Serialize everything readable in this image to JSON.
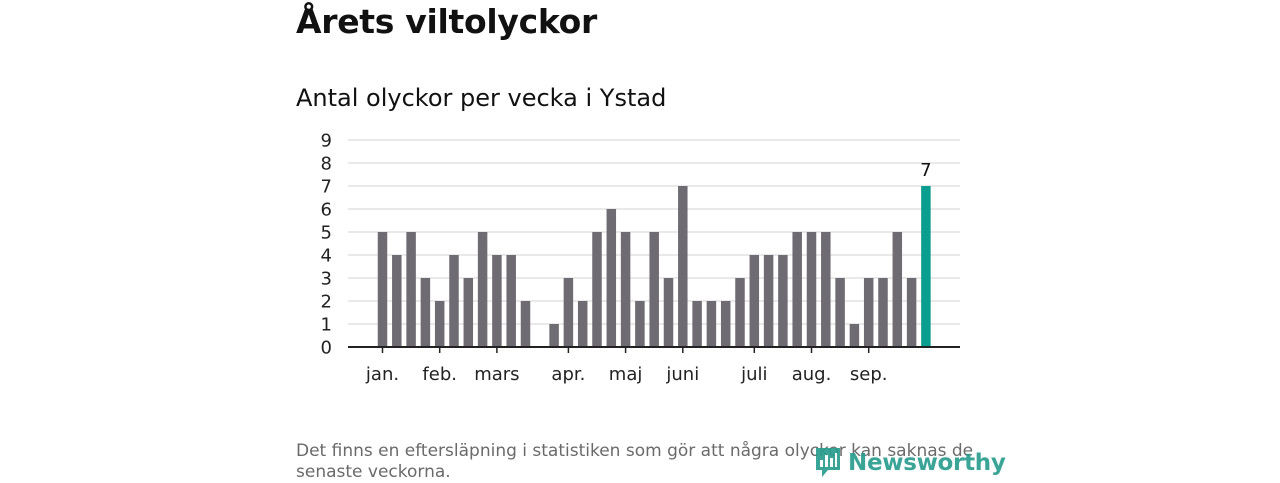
{
  "title": "Årets viltolyckor",
  "subtitle": "Antal olyckor per vecka i Ystad",
  "footnote": "Det finns en eftersläpning i statistiken som gör att några olyckor kan saknas de senaste veckorna.",
  "brand": "Newsworthy",
  "colors": {
    "bar": "#6e6c72",
    "highlight": "#0a9e91",
    "grid": "#d3d3d3",
    "axis": "#222222",
    "brand": "#2a9d8f"
  },
  "chart_data": {
    "type": "bar",
    "values": [
      5,
      4,
      5,
      3,
      2,
      4,
      3,
      5,
      4,
      4,
      2,
      0,
      1,
      3,
      2,
      5,
      6,
      5,
      2,
      5,
      3,
      7,
      2,
      2,
      2,
      3,
      4,
      4,
      4,
      5,
      5,
      5,
      3,
      1,
      3,
      3,
      5,
      3,
      7
    ],
    "highlight_last": true,
    "data_labels": [
      {
        "index": 38,
        "text": "7"
      }
    ],
    "month_labels": [
      {
        "index": 0,
        "label": "jan."
      },
      {
        "index": 4,
        "label": "feb."
      },
      {
        "index": 8,
        "label": "mars"
      },
      {
        "index": 13,
        "label": "apr."
      },
      {
        "index": 17,
        "label": "maj"
      },
      {
        "index": 21,
        "label": "juni"
      },
      {
        "index": 26,
        "label": "juli"
      },
      {
        "index": 30,
        "label": "aug."
      },
      {
        "index": 34,
        "label": "sep."
      }
    ],
    "yticks": [
      0,
      1,
      2,
      3,
      4,
      5,
      6,
      7,
      8,
      9
    ],
    "ylim": [
      0,
      9
    ],
    "grid": true
  }
}
